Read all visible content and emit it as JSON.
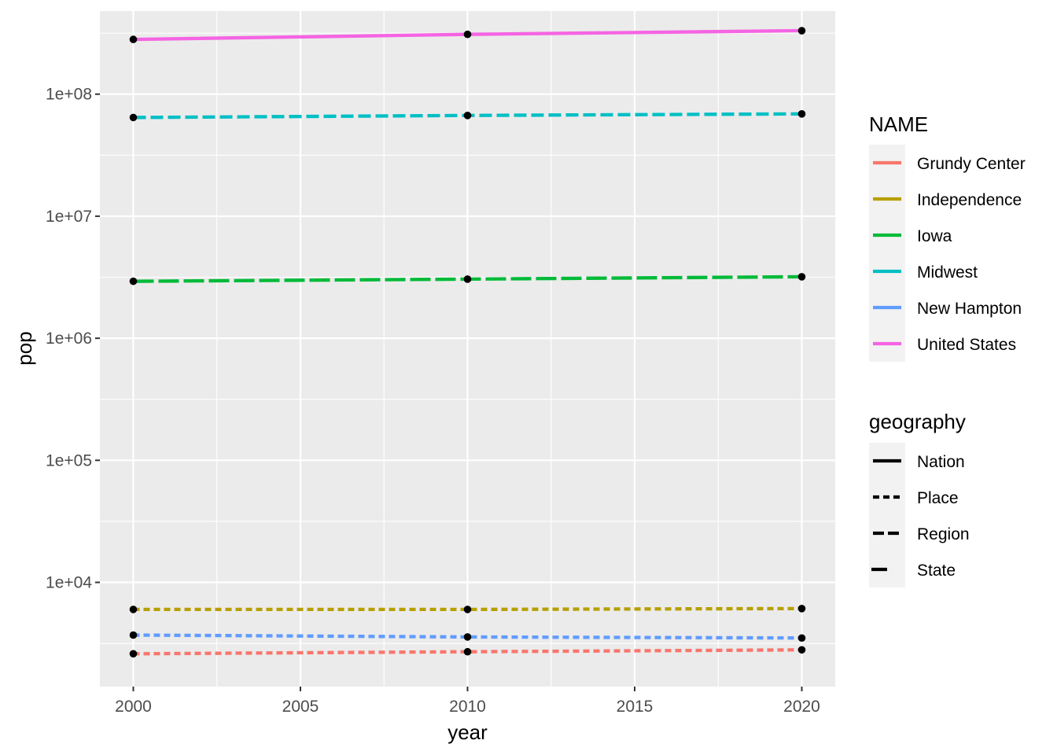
{
  "chart_data": {
    "type": "line",
    "xlabel": "year",
    "ylabel": "pop",
    "y_scale": "log10",
    "xlim": [
      1999,
      2021
    ],
    "ylim": [
      1400,
      480000000
    ],
    "x_ticks": [
      2000,
      2005,
      2010,
      2015,
      2020
    ],
    "x_tick_labels": [
      "2000",
      "2005",
      "2010",
      "2015",
      "2020"
    ],
    "y_ticks": [
      10000,
      100000,
      1000000,
      10000000,
      100000000
    ],
    "y_tick_labels": [
      "1e+04",
      "1e+05",
      "1e+06",
      "1e+07",
      "1e+08"
    ],
    "grid": true,
    "legend_placement": "right",
    "background_color": "#ebebeb",
    "grid_color": "#ffffff",
    "point_color": "#000000",
    "x": [
      2000,
      2010,
      2020
    ],
    "series": [
      {
        "name": "Grundy Center",
        "geography": "Place",
        "color": "#F8766D",
        "values": [
          2600,
          2700,
          2800
        ]
      },
      {
        "name": "Independence",
        "geography": "Place",
        "color": "#B79F00",
        "values": [
          6000,
          6000,
          6100
        ]
      },
      {
        "name": "Iowa",
        "geography": "State",
        "color": "#00BA38",
        "values": [
          2930000,
          3050000,
          3190000
        ]
      },
      {
        "name": "Midwest",
        "geography": "Region",
        "color": "#00BFC4",
        "values": [
          64400000,
          66900000,
          68900000
        ]
      },
      {
        "name": "New Hampton",
        "geography": "Place",
        "color": "#619CFF",
        "values": [
          3700,
          3570,
          3500
        ]
      },
      {
        "name": "United States",
        "geography": "Nation",
        "color": "#F564E3",
        "values": [
          281000000,
          309000000,
          331000000
        ]
      }
    ],
    "legends": {
      "color": {
        "title": "NAME",
        "entries": [
          {
            "label": "Grundy Center",
            "color": "#F8766D"
          },
          {
            "label": "Independence",
            "color": "#B79F00"
          },
          {
            "label": "Iowa",
            "color": "#00BA38"
          },
          {
            "label": "Midwest",
            "color": "#00BFC4"
          },
          {
            "label": "New Hampton",
            "color": "#619CFF"
          },
          {
            "label": "United States",
            "color": "#F564E3"
          }
        ]
      },
      "linetype": {
        "title": "geography",
        "entries": [
          {
            "label": "Nation",
            "dash": "solid"
          },
          {
            "label": "Place",
            "dash": "dotted"
          },
          {
            "label": "Region",
            "dash": "dashed"
          },
          {
            "label": "State",
            "dash": "longdash"
          }
        ]
      }
    }
  }
}
